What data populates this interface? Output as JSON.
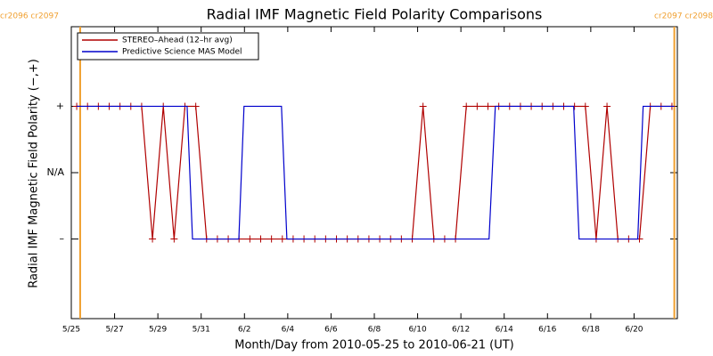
{
  "chart_data": {
    "type": "line",
    "title": "Radial IMF Magnetic Field Polarity Comparisons",
    "x_label": "Month/Day from 2010-05-25 to 2010-06-21 (UT)",
    "y_label": "Radial IMF Magnetic Field Polarity (−,+)",
    "xlim": [
      0,
      28
    ],
    "ylim": [
      -2.2,
      2.2
    ],
    "xticks": [
      {
        "value": 0,
        "label": "5/25"
      },
      {
        "value": 2,
        "label": "5/27"
      },
      {
        "value": 4,
        "label": "5/29"
      },
      {
        "value": 6,
        "label": "5/31"
      },
      {
        "value": 8,
        "label": "6/2"
      },
      {
        "value": 10,
        "label": "6/4"
      },
      {
        "value": 12,
        "label": "6/6"
      },
      {
        "value": 14,
        "label": "6/8"
      },
      {
        "value": 16,
        "label": "6/10"
      },
      {
        "value": 18,
        "label": "6/12"
      },
      {
        "value": 20,
        "label": "6/14"
      },
      {
        "value": 22,
        "label": "6/16"
      },
      {
        "value": 24,
        "label": "6/18"
      },
      {
        "value": 26,
        "label": "6/20"
      }
    ],
    "yticks": [
      {
        "value": 1,
        "label": "+"
      },
      {
        "value": 0,
        "label": "N/A"
      },
      {
        "value": -1,
        "label": "–"
      }
    ],
    "boundaries": [
      {
        "x": 0.41,
        "label": "cr2096 cr2097"
      },
      {
        "x": 27.86,
        "label": "cr2097 cr2098"
      }
    ],
    "boundary_color": "#f0a030",
    "legend": "upper left",
    "series": [
      {
        "name": "STEREO–Ahead (12–hr avg)",
        "color": "#b00000",
        "markers": true,
        "x": [
          0.25,
          0.75,
          1.25,
          1.75,
          2.25,
          2.75,
          3.25,
          3.75,
          4.25,
          4.75,
          5.25,
          5.75,
          6.25,
          6.75,
          7.25,
          7.75,
          8.25,
          8.75,
          9.25,
          9.75,
          10.25,
          10.75,
          11.25,
          11.75,
          12.25,
          12.75,
          13.25,
          13.75,
          14.25,
          14.75,
          15.25,
          15.75,
          16.25,
          16.75,
          17.25,
          17.75,
          18.25,
          18.75,
          19.25,
          19.75,
          20.25,
          20.75,
          21.25,
          21.75,
          22.25,
          22.75,
          23.25,
          23.75,
          24.25,
          24.75,
          25.25,
          25.75,
          26.25,
          26.75,
          27.25,
          27.75
        ],
        "values": [
          1,
          1,
          1,
          1,
          1,
          1,
          1,
          -1,
          1,
          -1,
          1,
          1,
          -1,
          -1,
          -1,
          -1,
          -1,
          -1,
          -1,
          -1,
          -1,
          -1,
          -1,
          -1,
          -1,
          -1,
          -1,
          -1,
          -1,
          -1,
          -1,
          -1,
          1,
          -1,
          -1,
          -1,
          1,
          1,
          1,
          1,
          1,
          1,
          1,
          1,
          1,
          1,
          1,
          1,
          -1,
          1,
          -1,
          -1,
          -1,
          1,
          1,
          1
        ]
      },
      {
        "name": "Predictive Science MAS Model",
        "color": "#0000cc",
        "markers": false,
        "x": [
          0.25,
          5.35,
          5.6,
          7.74,
          7.98,
          9.71,
          9.96,
          19.3,
          19.59,
          23.21,
          23.46,
          26.17,
          26.42,
          27.86
        ],
        "values": [
          1,
          1,
          -1,
          -1,
          1,
          1,
          -1,
          -1,
          1,
          1,
          -1,
          -1,
          1,
          1
        ]
      }
    ]
  }
}
